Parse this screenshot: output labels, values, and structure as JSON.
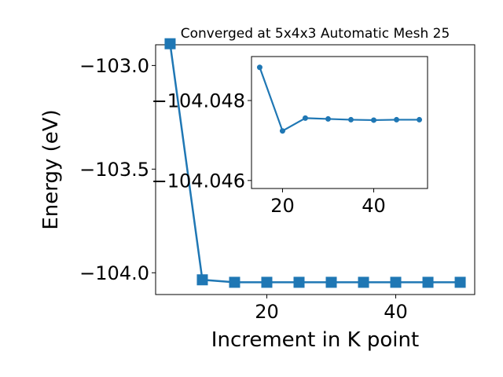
{
  "chart_data": [
    {
      "type": "line",
      "title": "Converged at 5x4x3 Automatic Mesh 25",
      "xlabel": "Increment in K point",
      "ylabel": "Energy (eV)",
      "xlim": [
        2.75,
        52.25
      ],
      "ylim": [
        -104.105,
        -102.9
      ],
      "xticks": [
        20,
        40
      ],
      "yticks": [
        -103.0,
        -103.5,
        -104.0
      ],
      "ytick_labels": [
        "−103.0",
        "−103.5",
        "−104.0"
      ],
      "xtick_labels": [
        "20",
        "40"
      ],
      "marker": "square",
      "grid": false,
      "series": [
        {
          "color": "#1f77b4",
          "x": [
            5,
            10,
            15,
            20,
            25,
            30,
            35,
            40,
            45,
            50
          ],
          "y": [
            -102.895,
            -104.034,
            -104.046,
            -104.046,
            -104.046,
            -104.046,
            -104.046,
            -104.046,
            -104.046,
            -104.046
          ]
        }
      ]
    },
    {
      "type": "line",
      "title": "",
      "xlabel": "",
      "ylabel": "",
      "inset": true,
      "xlim": [
        13.2,
        51.8
      ],
      "ylim": [
        -104.0458,
        -104.0491
      ],
      "xticks": [
        20,
        40
      ],
      "yticks": [
        -104.048,
        -104.046
      ],
      "ytick_labels": [
        "−104.048",
        "−104.046"
      ],
      "xtick_labels": [
        "20",
        "40"
      ],
      "marker": "circle",
      "grid": false,
      "series": [
        {
          "color": "#1f77b4",
          "x": [
            15,
            20,
            25,
            30,
            35,
            40,
            45,
            50
          ],
          "y": [
            -104.04883,
            -104.04724,
            -104.04756,
            -104.04754,
            -104.04752,
            -104.04751,
            -104.04752,
            -104.04752
          ]
        }
      ]
    }
  ]
}
